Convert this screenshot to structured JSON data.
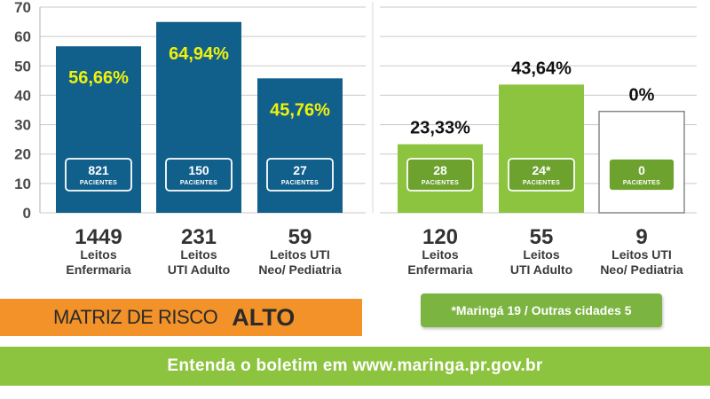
{
  "chart_data": [
    {
      "type": "bar",
      "categories": [
        "Leitos Enfermaria",
        "Leitos UTI Adulto",
        "Leitos UTI Neo/ Pediatria"
      ],
      "category_lines": [
        [
          "Leitos",
          "Enfermaria"
        ],
        [
          "Leitos",
          "UTI Adulto"
        ],
        [
          "Leitos UTI",
          "Neo/ Pediatria"
        ]
      ],
      "values": [
        56.66,
        64.94,
        45.76
      ],
      "value_labels": [
        "56,66%",
        "64,94%",
        "45,76%"
      ],
      "patients": [
        "821",
        "150",
        "27"
      ],
      "patients_unit": "PACIENTES",
      "totals": [
        "1449",
        "231",
        "59"
      ],
      "ylim": [
        0,
        70
      ],
      "yticks": [
        0,
        10,
        20,
        30,
        40,
        50,
        60,
        70
      ],
      "grid": true,
      "colors": {
        "bar": "#11608c",
        "label": "#f2f20a",
        "badge": "#11608c",
        "badge_border": "#ffffff"
      }
    },
    {
      "type": "bar",
      "categories": [
        "Leitos Enfermaria",
        "Leitos UTI Adulto",
        "Leitos UTI Neo/ Pediatria"
      ],
      "category_lines": [
        [
          "Leitos",
          "Enfermaria"
        ],
        [
          "Leitos",
          "UTI Adulto"
        ],
        [
          "Leitos UTI",
          "Neo/ Pediatria"
        ]
      ],
      "values": [
        23.33,
        43.64,
        0
      ],
      "value_labels": [
        "23,33%",
        "43,64%",
        "0%"
      ],
      "patients": [
        "28",
        "24*",
        "0"
      ],
      "patients_unit": "PACIENTES",
      "totals": [
        "120",
        "55",
        "9"
      ],
      "ylim": [
        0,
        70
      ],
      "grid": true,
      "colors": {
        "bar": "#8cc43f",
        "label": "#111111",
        "badge": "#6da22e",
        "badge_border": "#ffffff",
        "empty_bar_border": "#888888"
      }
    }
  ],
  "risk": {
    "label": "MATRIZ DE RISCO",
    "level": "ALTO",
    "color": "#f39228"
  },
  "note": "*Maringá 19 / Outras cidades 5",
  "footer": {
    "text": "Entenda o boletim em www.maringa.pr.gov.br",
    "color": "#8cc43f"
  }
}
